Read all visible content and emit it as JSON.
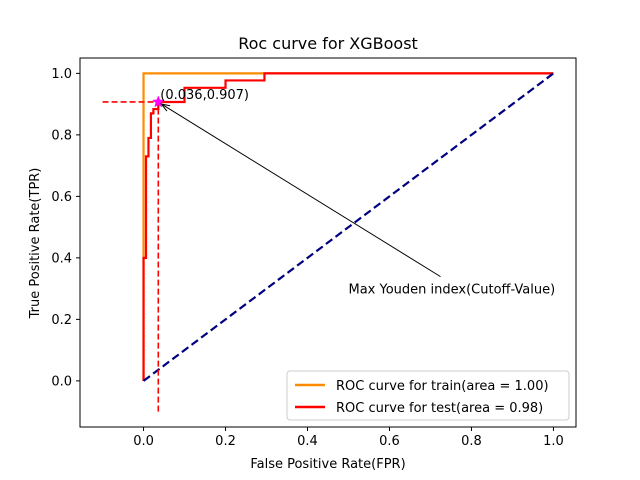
{
  "chart_data": {
    "type": "line",
    "title": "Roc curve for XGBoost",
    "xlabel": "False Positive Rate(FPR)",
    "ylabel": "True Positive Rate(TPR)",
    "xlim": [
      -0.155,
      1.055
    ],
    "ylim": [
      -0.15,
      1.05
    ],
    "xticks": [
      "0.0",
      "0.2",
      "0.4",
      "0.6",
      "0.8",
      "1.0"
    ],
    "yticks": [
      "0.0",
      "0.2",
      "0.4",
      "0.6",
      "0.8",
      "1.0"
    ],
    "grid": false,
    "legend_position": "lower-right",
    "series": [
      {
        "name": "ROC curve for train(area = 1.00)",
        "color": "#ff8c00",
        "x": [
          0.0,
          0.0,
          0.0,
          0.0,
          0.0,
          1.0
        ],
        "y": [
          0.0,
          0.4,
          0.6,
          0.8,
          1.0,
          1.0
        ]
      },
      {
        "name": "ROC curve for test(area = 0.98)",
        "color": "#ff0000",
        "x": [
          0.0,
          0.0,
          0.006,
          0.006,
          0.012,
          0.012,
          0.018,
          0.018,
          0.024,
          0.024,
          0.036,
          0.036,
          0.1,
          0.1,
          0.2,
          0.2,
          0.295,
          0.295,
          1.0
        ],
        "y": [
          0.0,
          0.4,
          0.4,
          0.73,
          0.73,
          0.79,
          0.79,
          0.87,
          0.87,
          0.884,
          0.884,
          0.907,
          0.907,
          0.953,
          0.953,
          0.977,
          0.977,
          1.0,
          1.0
        ]
      }
    ],
    "diagonal": {
      "x": [
        0.0,
        1.0
      ],
      "y": [
        0.0,
        1.0
      ],
      "color": "#000080"
    },
    "cutoff_point": {
      "x": 0.036,
      "y": 0.907,
      "label": "(0.036,0.907)",
      "color": "#ff00ff"
    },
    "cutoff_guides": {
      "h_x_start": -0.1,
      "v_y_start": -0.1,
      "color": "#ff0000"
    },
    "annotation": {
      "text": "Max Youden index(Cutoff-Value)",
      "x": 0.5,
      "y": 0.3
    }
  }
}
